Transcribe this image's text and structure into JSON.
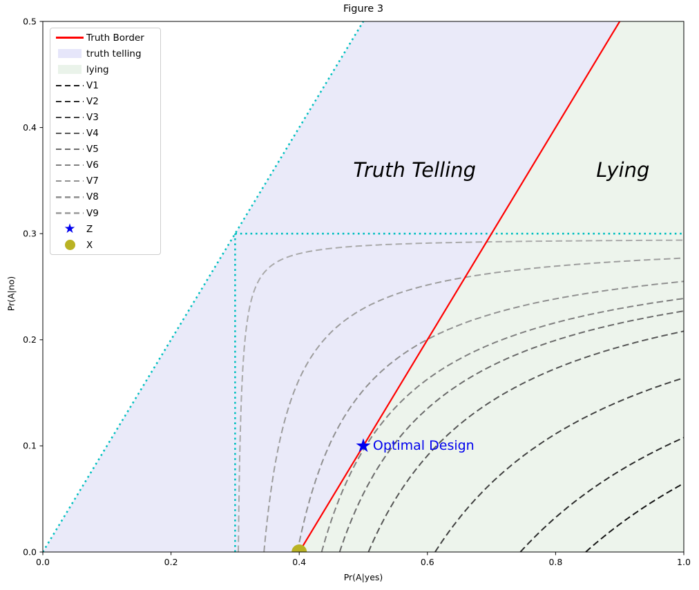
{
  "chart_data": {
    "type": "line",
    "title": "Figure 3",
    "xlabel": "Pr(A|yes)",
    "ylabel": "Pr(A|no)",
    "xlim": [
      0.0,
      1.0
    ],
    "ylim": [
      0.0,
      0.5
    ],
    "grid": false,
    "legend_position": "upper left",
    "xticks": {
      "values": [
        0.0,
        0.2,
        0.4,
        0.6,
        0.8,
        1.0
      ],
      "labels": [
        "0.0",
        "0.2",
        "0.4",
        "0.6",
        "0.8",
        "1.0"
      ]
    },
    "yticks": {
      "values": [
        0.0,
        0.1,
        0.2,
        0.3,
        0.4,
        0.5
      ],
      "labels": [
        "0.0",
        "0.1",
        "0.2",
        "0.3",
        "0.4",
        "0.5"
      ]
    },
    "regions": [
      {
        "name": "truth telling",
        "color": "#EAEAF9",
        "polygon": [
          [
            0.0,
            0.0
          ],
          [
            0.5,
            0.5
          ],
          [
            0.9,
            0.5
          ],
          [
            0.4,
            0.0
          ]
        ]
      },
      {
        "name": "lying",
        "color": "#EDF4EC",
        "polygon": [
          [
            0.4,
            0.0
          ],
          [
            0.9,
            0.5
          ],
          [
            1.0,
            0.5
          ],
          [
            1.0,
            0.0
          ]
        ]
      }
    ],
    "truth_border": {
      "label": "Truth Border",
      "color": "#FF0000",
      "points": [
        [
          0.4,
          0.0
        ],
        [
          0.9,
          0.5
        ]
      ]
    },
    "guide_lines": {
      "color": "#00BFBF",
      "style": "dotted",
      "segments": [
        {
          "name": "diagonal-y-equals-x",
          "points": [
            [
              0.0,
              0.0
            ],
            [
              0.5,
              0.5
            ]
          ]
        },
        {
          "name": "horizontal-at-0.3",
          "points": [
            [
              0.3,
              0.3
            ],
            [
              1.0,
              0.3
            ]
          ]
        },
        {
          "name": "vertical-at-0.3",
          "points": [
            [
              0.3,
              0.0
            ],
            [
              0.3,
              0.3
            ]
          ]
        }
      ]
    },
    "contours": {
      "model": "y = b - c/(x - a), c = b*(x_bottom - a)",
      "a": 0.3,
      "b": 0.296,
      "series": [
        {
          "name": "V1",
          "x_bottom": 0.847,
          "y_at_right_edge": 0.065,
          "color": "#141414"
        },
        {
          "name": "V2",
          "x_bottom": 0.745,
          "y_at_right_edge": 0.108,
          "color": "#2A2A2A"
        },
        {
          "name": "V3",
          "x_bottom": 0.612,
          "y_at_right_edge": 0.164,
          "color": "#404040"
        },
        {
          "name": "V4",
          "x_bottom": 0.508,
          "y_at_right_edge": 0.208,
          "color": "#555555"
        },
        {
          "name": "V5",
          "x_bottom": 0.463,
          "y_at_right_edge": 0.227,
          "color": "#6A6A6A"
        },
        {
          "name": "V6",
          "x_bottom": 0.435,
          "y_at_right_edge": 0.239,
          "color": "#7F7F7F"
        },
        {
          "name": "V7",
          "x_bottom": 0.397,
          "y_at_right_edge": 0.255,
          "color": "#909090"
        },
        {
          "name": "V8",
          "x_bottom": 0.345,
          "y_at_right_edge": 0.277,
          "color": "#9D9D9D"
        },
        {
          "name": "V9",
          "x_bottom": 0.305,
          "y_at_right_edge": 0.294,
          "color": "#A9A9A9"
        }
      ]
    },
    "markers": [
      {
        "name": "Z",
        "type": "star",
        "x": 0.5,
        "y": 0.1,
        "color": "#0000EE"
      },
      {
        "name": "X",
        "type": "circle",
        "x": 0.4,
        "y": 0.0,
        "color": "#B9B223"
      }
    ],
    "annotations": [
      {
        "text": "Truth Telling",
        "x": 0.58,
        "y": 0.36,
        "style": "italic",
        "size": 29,
        "color": "#000000",
        "align": "center"
      },
      {
        "text": "Lying",
        "x": 0.905,
        "y": 0.36,
        "style": "italic",
        "size": 29,
        "color": "#000000",
        "align": "center"
      },
      {
        "text": "Optimal Design",
        "x": 0.515,
        "y": 0.1,
        "style": "normal",
        "size": 19,
        "color": "#0000EE",
        "align": "left"
      }
    ],
    "legend": {
      "entries": [
        {
          "label": "Truth Border",
          "swatch": "line",
          "color": "#FF0000"
        },
        {
          "label": "truth telling",
          "swatch": "patch",
          "color": "#E6E6FA"
        },
        {
          "label": "lying",
          "swatch": "patch",
          "color": "#EAF3EA"
        },
        {
          "label": "V1",
          "swatch": "dashed",
          "color": "#141414"
        },
        {
          "label": "V2",
          "swatch": "dashed",
          "color": "#2A2A2A"
        },
        {
          "label": "V3",
          "swatch": "dashed",
          "color": "#404040"
        },
        {
          "label": "V4",
          "swatch": "dashed",
          "color": "#555555"
        },
        {
          "label": "V5",
          "swatch": "dashed",
          "color": "#6A6A6A"
        },
        {
          "label": "V6",
          "swatch": "dashed",
          "color": "#7F7F7F"
        },
        {
          "label": "V7",
          "swatch": "dashed",
          "color": "#909090"
        },
        {
          "label": "V8",
          "swatch": "dashed",
          "color": "#9D9D9D"
        },
        {
          "label": "V9",
          "swatch": "dashed",
          "color": "#A9A9A9"
        },
        {
          "label": "Z",
          "swatch": "star",
          "color": "#0000EE"
        },
        {
          "label": "X",
          "swatch": "dot",
          "color": "#B9B223"
        }
      ]
    }
  }
}
